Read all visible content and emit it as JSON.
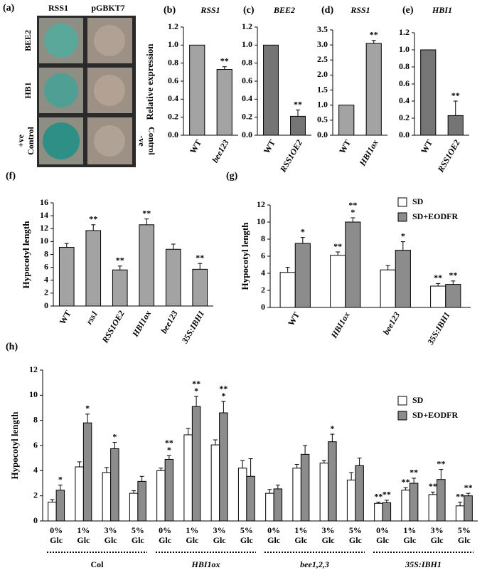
{
  "panel_a": {
    "label": "(a)",
    "columns": [
      "RSS1",
      "pGBKT7"
    ],
    "rows": [
      [
        "BEE2"
      ],
      [
        "HB1"
      ],
      [
        "+ve",
        "Control"
      ]
    ],
    "right_label": [
      "-ve",
      "Control"
    ]
  },
  "chart_data": [
    {
      "type": "bar",
      "label": "(b)",
      "title": "RSS1",
      "ylabel": "Relative expression",
      "categories": [
        "WT",
        "bee123"
      ],
      "series": [
        {
          "color": "#a3a3a3",
          "values": [
            1.0,
            0.73
          ],
          "errors": [
            0,
            0.03
          ],
          "annotations": [
            null,
            [
              "**"
            ]
          ]
        }
      ],
      "ylim": [
        0,
        1.2
      ],
      "yticks": [
        {
          "value": 0,
          "label": "0.0"
        },
        {
          "value": 0.2,
          "label": "0.2"
        },
        {
          "value": 0.4,
          "label": "0.4"
        },
        {
          "value": 0.6,
          "label": "0.6"
        },
        {
          "value": 0.8,
          "label": "0.8"
        },
        {
          "value": 1.0,
          "label": "1.0"
        },
        {
          "value": 1.2,
          "label": "1.2"
        }
      ]
    },
    {
      "type": "bar",
      "label": "(c)",
      "title": "BEE2",
      "categories": [
        "WT",
        "RSS1OE2"
      ],
      "series": [
        {
          "color": "#757575",
          "values": [
            1.0,
            0.21
          ],
          "errors": [
            0,
            0.07
          ],
          "annotations": [
            null,
            [
              "**"
            ]
          ]
        }
      ],
      "ylim": [
        0,
        1.2
      ],
      "yticks": [
        {
          "value": 0,
          "label": "0.0"
        },
        {
          "value": 0.2,
          "label": "0.2"
        },
        {
          "value": 0.4,
          "label": "0.4"
        },
        {
          "value": 0.6,
          "label": "0.6"
        },
        {
          "value": 0.8,
          "label": "0.8"
        },
        {
          "value": 1.0,
          "label": "1.0"
        },
        {
          "value": 1.2,
          "label": "1.2"
        }
      ]
    },
    {
      "type": "bar",
      "label": "(d)",
      "title": "RSS1",
      "categories": [
        "WT",
        "HBI1ox"
      ],
      "series": [
        {
          "color": "#a3a3a3",
          "values": [
            1.0,
            3.05
          ],
          "errors": [
            0,
            0.1
          ],
          "annotations": [
            null,
            [
              "**"
            ]
          ]
        }
      ],
      "ylim": [
        0,
        3.5
      ],
      "yticks": [
        {
          "value": 0,
          "label": "0.0"
        },
        0.5,
        {
          "value": 1.0,
          "label": "1.0"
        },
        1.5,
        {
          "value": 2.0,
          "label": "2.0"
        },
        2.5,
        {
          "value": 3.0,
          "label": "3.0"
        },
        3.5
      ]
    },
    {
      "type": "bar",
      "label": "(e)",
      "title": "HBI1",
      "categories": [
        "WT",
        "RSS1OE2"
      ],
      "series": [
        {
          "color": "#757575",
          "values": [
            1.0,
            0.23
          ],
          "errors": [
            0,
            0.17
          ],
          "annotations": [
            null,
            [
              "**"
            ]
          ]
        }
      ],
      "ylim": [
        0,
        1.2
      ],
      "yticks": [
        {
          "value": 0,
          "label": "0.0"
        },
        {
          "value": 0.2,
          "label": "0.2"
        },
        {
          "value": 0.4,
          "label": "0.4"
        },
        {
          "value": 0.6,
          "label": "0.6"
        },
        {
          "value": 0.8,
          "label": "0.8"
        },
        {
          "value": 1.0,
          "label": "1.0"
        },
        {
          "value": 1.2,
          "label": "1.2"
        }
      ]
    },
    {
      "type": "bar",
      "label": "(f)",
      "ylabel": "Hypocotyl length",
      "categories": [
        "WT",
        "rss1",
        "RSS1OE2",
        "HBI1ox",
        "bee123",
        "35S:IBH1"
      ],
      "series": [
        {
          "color": "#a3a3a3",
          "values": [
            9.1,
            11.7,
            5.6,
            12.6,
            8.8,
            5.7
          ],
          "errors": [
            0.6,
            0.9,
            0.6,
            0.9,
            0.8,
            0.9
          ],
          "annotations": [
            null,
            [
              "**"
            ],
            [
              "**"
            ],
            [
              "**"
            ],
            null,
            [
              "**"
            ]
          ]
        }
      ],
      "ylim": [
        0,
        16
      ],
      "yticks": [
        0,
        2,
        4,
        6,
        8,
        10,
        12,
        14,
        16
      ]
    },
    {
      "type": "bar",
      "label": "(g)",
      "ylabel": "Hypocotyl length",
      "categories": [
        "WT",
        "HBI1ox",
        "bee123",
        "35S:IBH1"
      ],
      "series": [
        {
          "name": "SD",
          "color": "#ffffff",
          "values": [
            4.1,
            6.1,
            4.4,
            2.5
          ],
          "errors": [
            0.6,
            0.4,
            0.5,
            0.3
          ],
          "annotations": [
            null,
            [
              "**"
            ],
            null,
            [
              "**"
            ]
          ]
        },
        {
          "name": "SD+EODFR",
          "color": "#8c8c8c",
          "values": [
            7.5,
            10.0,
            6.7,
            2.7
          ],
          "errors": [
            0.7,
            0.5,
            1.0,
            0.4
          ],
          "annotations": [
            [
              "*"
            ],
            [
              "**",
              "*"
            ],
            [
              "*"
            ],
            [
              "**"
            ]
          ]
        }
      ],
      "ylim": [
        0,
        12
      ],
      "yticks": [
        0,
        2,
        4,
        6,
        8,
        10,
        12
      ],
      "legend": "upper right"
    },
    {
      "type": "bar",
      "label": "(h)",
      "ylabel": "Hypocotyl length",
      "categories": [
        [
          "0%",
          "Glc"
        ],
        [
          "1%",
          "Glc"
        ],
        [
          "3%",
          "Glc"
        ],
        [
          "5%",
          "Glc"
        ],
        [
          "0%",
          "Glc"
        ],
        [
          "1%",
          "Glc"
        ],
        [
          "3%",
          "Glc"
        ],
        [
          "5%",
          "Glc"
        ],
        [
          "0%",
          "Glc"
        ],
        [
          "1%",
          "Glc"
        ],
        [
          "3%",
          "Glc"
        ],
        [
          "5%",
          "Glc"
        ],
        [
          "0%",
          "Glc"
        ],
        [
          "1%",
          "Glc"
        ],
        [
          "3%",
          "Glc"
        ],
        [
          "5%",
          "Glc"
        ]
      ],
      "groups": [
        "Col",
        "HBI1ox",
        "bee1,2,3",
        "35S:IBH1"
      ],
      "series": [
        {
          "name": "SD",
          "color": "#ffffff",
          "values": [
            1.5,
            4.3,
            3.85,
            2.2,
            4.0,
            6.85,
            6.05,
            4.2,
            2.2,
            4.2,
            4.6,
            3.25,
            1.4,
            2.45,
            2.1,
            1.2
          ],
          "errors": [
            0.2,
            0.4,
            0.4,
            0.2,
            0.2,
            0.5,
            0.4,
            0.6,
            0.3,
            0.3,
            0.2,
            0.6,
            0.1,
            0.2,
            0.2,
            0.3
          ],
          "annotations": [
            null,
            null,
            null,
            null,
            null,
            null,
            null,
            null,
            null,
            null,
            null,
            null,
            [
              "**"
            ],
            [
              "**"
            ],
            [
              "**"
            ],
            [
              "**"
            ]
          ]
        },
        {
          "name": "SD+EODFR",
          "color": "#8c8c8c",
          "values": [
            2.45,
            7.8,
            5.75,
            3.15,
            4.9,
            9.1,
            8.6,
            3.55,
            2.55,
            5.3,
            6.3,
            4.4,
            1.45,
            3.0,
            3.3,
            2.0
          ],
          "errors": [
            0.4,
            0.7,
            0.5,
            0.4,
            0.3,
            0.8,
            0.9,
            1.4,
            0.3,
            0.7,
            0.6,
            0.6,
            0.2,
            0.4,
            0.8,
            0.2
          ],
          "annotations": [
            [
              "*"
            ],
            [
              "*"
            ],
            [
              "*"
            ],
            null,
            [
              "**",
              "*"
            ],
            [
              "**",
              "*"
            ],
            [
              "**",
              "*"
            ],
            null,
            null,
            null,
            [
              "*"
            ],
            null,
            [
              "**"
            ],
            [
              "**"
            ],
            [
              "**"
            ],
            [
              "**"
            ]
          ]
        }
      ],
      "ylim": [
        0,
        12
      ],
      "yticks": [
        0,
        2,
        4,
        6,
        8,
        10,
        12
      ],
      "legend": "upper right"
    }
  ]
}
